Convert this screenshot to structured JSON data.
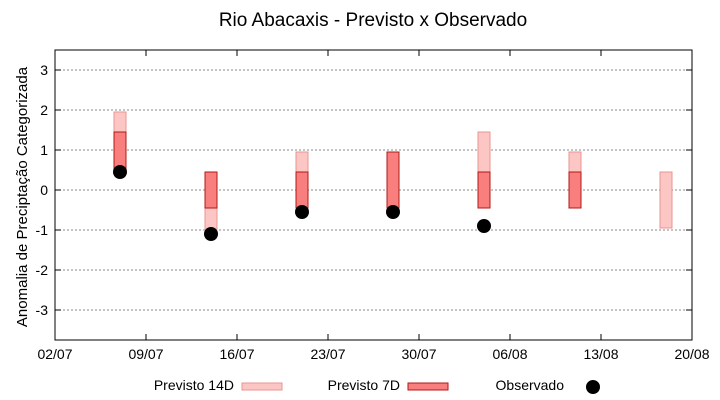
{
  "chart_data": {
    "type": "range-bar-scatter",
    "title": "Rio Abacaxis - Previsto x Observado",
    "xlabel": "",
    "ylabel": "Anomalia de Preciptação Categorizada",
    "ylim": [
      -3.75,
      3.5
    ],
    "yticks": [
      -3,
      -2,
      -1,
      0,
      1,
      2,
      3
    ],
    "xticks": [
      "02/07",
      "09/07",
      "16/07",
      "23/07",
      "30/07",
      "06/08",
      "13/08",
      "20/08"
    ],
    "grid": "horizontal dashed",
    "legend_position": "bottom",
    "colors": {
      "forecast_14d_fill": "#fbc6c3",
      "forecast_14d_stroke": "#e89590",
      "forecast_7d_fill": "#f87f7d",
      "forecast_7d_stroke": "#b01818",
      "observed": "#000000"
    },
    "series": [
      {
        "name": "Previsto 14D",
        "kind": "range",
        "points": [
          {
            "x": "07/07",
            "low": 0.45,
            "high": 1.95
          },
          {
            "x": "14/07",
            "low": -1.0,
            "high": -0.45
          },
          {
            "x": "21/07",
            "low": 0.45,
            "high": 0.95
          },
          {
            "x": "04/08",
            "low": 0.45,
            "high": 1.45
          },
          {
            "x": "11/08",
            "low": 0.45,
            "high": 0.95
          },
          {
            "x": "18/08",
            "low": -0.95,
            "high": 0.45
          }
        ]
      },
      {
        "name": "Previsto 7D",
        "kind": "range",
        "points": [
          {
            "x": "07/07",
            "low": 0.45,
            "high": 1.45
          },
          {
            "x": "14/07",
            "low": -0.45,
            "high": 0.45
          },
          {
            "x": "21/07",
            "low": -0.45,
            "high": 0.45
          },
          {
            "x": "28/07",
            "low": -0.45,
            "high": 0.95
          },
          {
            "x": "04/08",
            "low": -0.45,
            "high": 0.45
          },
          {
            "x": "11/08",
            "low": -0.45,
            "high": 0.45
          }
        ]
      },
      {
        "name": "Observado",
        "kind": "point",
        "points": [
          {
            "x": "07/07",
            "y": 0.45
          },
          {
            "x": "14/07",
            "y": -1.1
          },
          {
            "x": "21/07",
            "y": -0.55
          },
          {
            "x": "28/07",
            "y": -0.55
          },
          {
            "x": "04/08",
            "y": -0.9
          }
        ]
      }
    ]
  }
}
